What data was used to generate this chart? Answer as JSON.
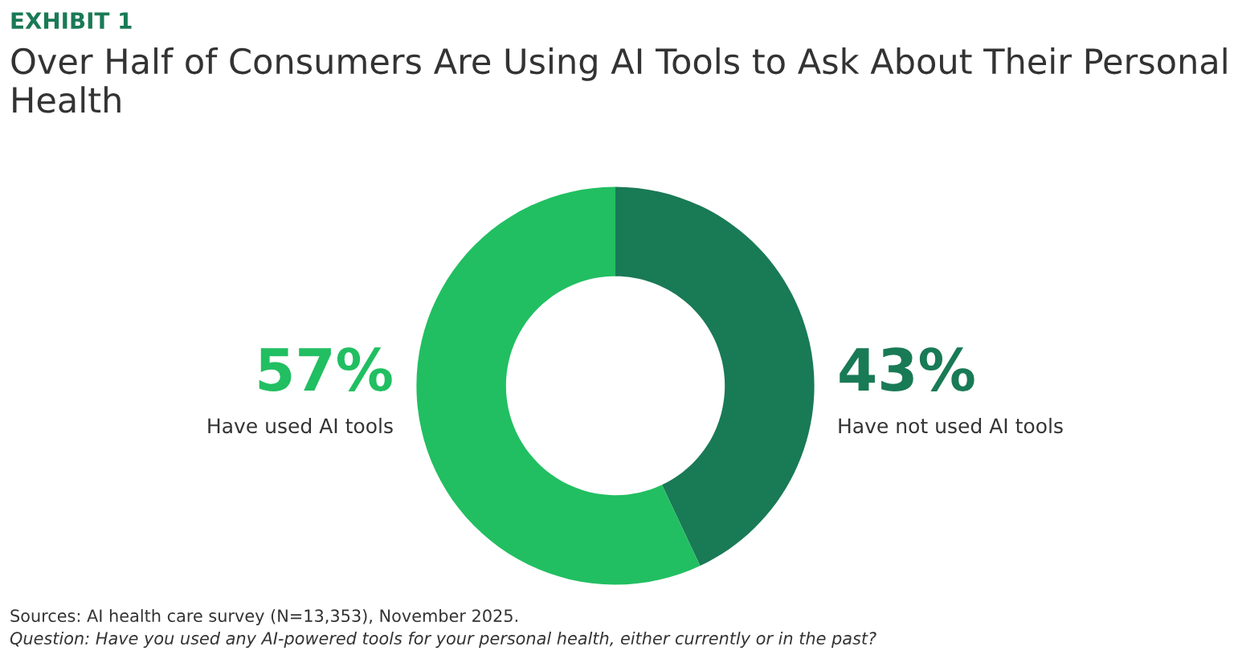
{
  "chart_data": {
    "type": "donut",
    "title": "Over Half of Consumers Are Using AI Tools to Ask About Their Personal Health",
    "categories": [
      "Have not used AI tools",
      "Have used AI tools"
    ],
    "values": [
      43,
      57
    ],
    "colors": [
      "#197a56",
      "#21bf61"
    ],
    "value_labels": [
      "43%",
      "57%"
    ],
    "legend": false,
    "annotations": [
      "EXHIBIT 1",
      "Sources: AI health care survey (N=13,353), November 2025.",
      "Question: Have you used any AI-powered tools for your personal health, either currently or in the past?"
    ]
  }
}
